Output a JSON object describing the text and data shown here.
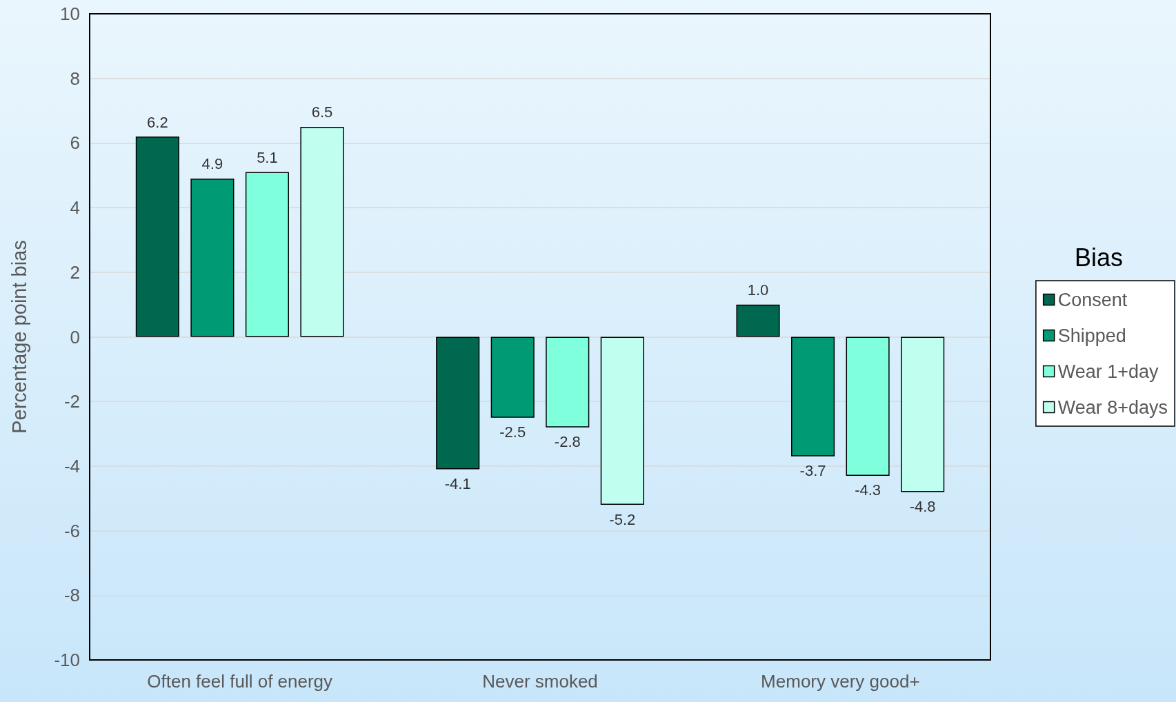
{
  "chart_data": {
    "type": "bar",
    "ylabel": "Percentage point bias",
    "legend_title": "Bias",
    "categories": [
      "Often feel full of energy",
      "Never smoked",
      "Memory very good+"
    ],
    "series": [
      {
        "name": "Consent",
        "color": "#00684f",
        "values": [
          6.2,
          -4.1,
          1.0
        ],
        "value_labels": [
          "6.2",
          "-4.1",
          "1.0"
        ]
      },
      {
        "name": "Shipped",
        "color": "#009a75",
        "values": [
          4.9,
          -2.5,
          -3.7
        ],
        "value_labels": [
          "4.9",
          "-2.5",
          "-3.7"
        ]
      },
      {
        "name": "Wear 1+day",
        "color": "#80ffdc",
        "values": [
          5.1,
          -2.8,
          -4.3
        ],
        "value_labels": [
          "5.1",
          "-2.8",
          "-4.3"
        ]
      },
      {
        "name": "Wear 8+days",
        "color": "#c0ffef",
        "values": [
          6.5,
          -5.2,
          -4.8
        ],
        "value_labels": [
          "6.5",
          "-5.2",
          "-4.8"
        ]
      }
    ],
    "ylim": [
      -10,
      10
    ],
    "yticks": [
      -10,
      -8,
      -6,
      -4,
      -2,
      0,
      2,
      4,
      6,
      8,
      10
    ],
    "grid": "y",
    "legend": "right"
  }
}
